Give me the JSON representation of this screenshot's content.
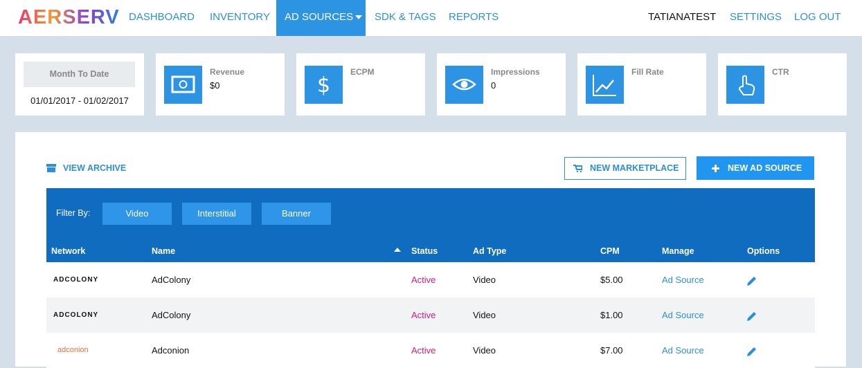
{
  "nav": {
    "logo": "AERSERV",
    "items": [
      "DASHBOARD",
      "INVENTORY",
      "AD SOURCES",
      "SDK & TAGS",
      "REPORTS"
    ],
    "user": "TATIANATEST",
    "settings": "SETTINGS",
    "logout": "LOG OUT"
  },
  "stats": {
    "period": {
      "label": "Month To Date",
      "range": "01/01/2017 - 01/02/2017"
    },
    "cards": [
      {
        "label": "Revenue",
        "value": "$0"
      },
      {
        "label": "ECPM"
      },
      {
        "label": "Impressions",
        "value": "0"
      },
      {
        "label": "Fill Rate"
      },
      {
        "label": "CTR"
      }
    ]
  },
  "actions": {
    "archive": "VIEW ARCHIVE",
    "marketplace": "NEW MARKETPLACE",
    "new_source": "NEW AD SOURCE"
  },
  "filter": {
    "label": "Filter By:",
    "buttons": [
      "Video",
      "Interstitial",
      "Banner"
    ]
  },
  "table": {
    "columns": [
      "Network",
      "Name",
      "Status",
      "Ad Type",
      "CPM",
      "Manage",
      "Options"
    ],
    "rows": [
      [
        "ADCOLONY",
        "AdColony",
        "Active",
        "Video",
        "$5.00",
        "Ad Source"
      ],
      [
        "ADCOLONY",
        "AdColony",
        "Active",
        "Video",
        "$1.00",
        "Ad Source"
      ],
      [
        "adconion",
        "Adconion",
        "Active",
        "Video",
        "$7.00",
        "Ad Source"
      ]
    ]
  }
}
